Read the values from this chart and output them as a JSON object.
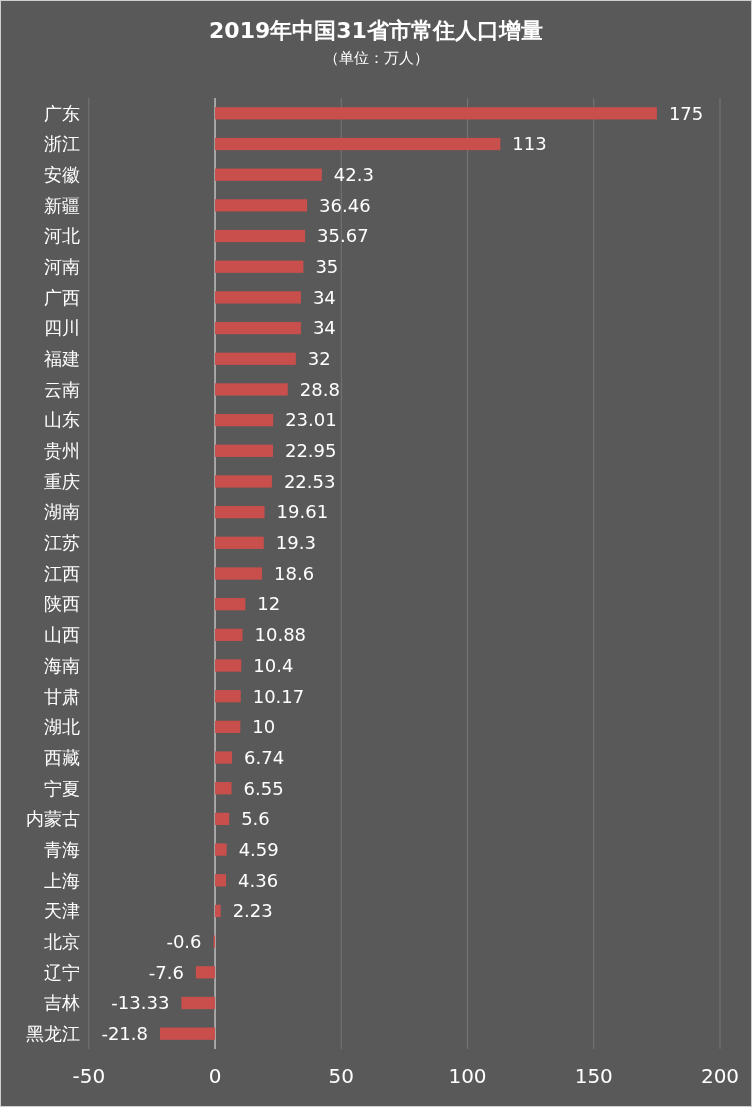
{
  "chart_data": {
    "type": "bar",
    "orientation": "horizontal",
    "title": "2019年中国31省市常住人口增量",
    "subtitle": "（单位：万人）",
    "categories": [
      "广东",
      "浙江",
      "安徽",
      "新疆",
      "河北",
      "河南",
      "广西",
      "四川",
      "福建",
      "云南",
      "山东",
      "贵州",
      "重庆",
      "湖南",
      "江苏",
      "江西",
      "陕西",
      "山西",
      "海南",
      "甘肃",
      "湖北",
      "西藏",
      "宁夏",
      "内蒙古",
      "青海",
      "上海",
      "天津",
      "北京",
      "辽宁",
      "吉林",
      "黑龙江"
    ],
    "values": [
      175,
      113,
      42.3,
      36.46,
      35.67,
      35,
      34,
      34,
      32,
      28.8,
      23.01,
      22.95,
      22.53,
      19.61,
      19.3,
      18.6,
      12,
      10.88,
      10.4,
      10.17,
      10,
      6.74,
      6.55,
      5.6,
      4.59,
      4.36,
      2.23,
      -0.6,
      -7.6,
      -13.33,
      -21.8
    ],
    "color": "#c94f4d",
    "data_labels": true,
    "xlim": [
      -50,
      200
    ],
    "xticks": [
      -50,
      0,
      50,
      100,
      150,
      200
    ],
    "grid": "x"
  }
}
